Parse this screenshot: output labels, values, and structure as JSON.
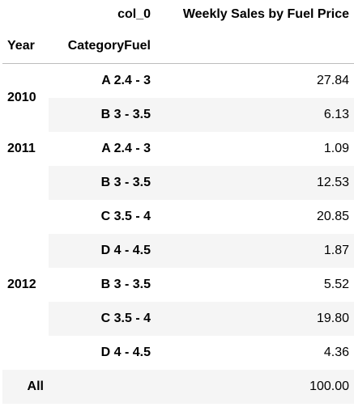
{
  "table": {
    "column_index_name": "col_0",
    "value_header": "Weekly Sales by Fuel Price",
    "row_index_names": [
      "Year",
      "CategoryFuel"
    ],
    "rows": [
      {
        "year": "2010",
        "category": "A 2.4 - 3",
        "value": "27.84"
      },
      {
        "year": "",
        "category": "B 3 - 3.5",
        "value": "6.13"
      },
      {
        "year": "2011",
        "category": "A 2.4 - 3",
        "value": "1.09"
      },
      {
        "year": "",
        "category": "B 3 - 3.5",
        "value": "12.53"
      },
      {
        "year": "",
        "category": "C 3.5 - 4",
        "value": "20.85"
      },
      {
        "year": "",
        "category": "D 4 - 4.5",
        "value": "1.87"
      },
      {
        "year": "2012",
        "category": "B 3 - 3.5",
        "value": "5.52"
      },
      {
        "year": "",
        "category": "C 3.5 - 4",
        "value": "19.80"
      },
      {
        "year": "",
        "category": "D 4 - 4.5",
        "value": "4.36"
      }
    ],
    "total": {
      "label": "All",
      "value": "100.00"
    }
  }
}
